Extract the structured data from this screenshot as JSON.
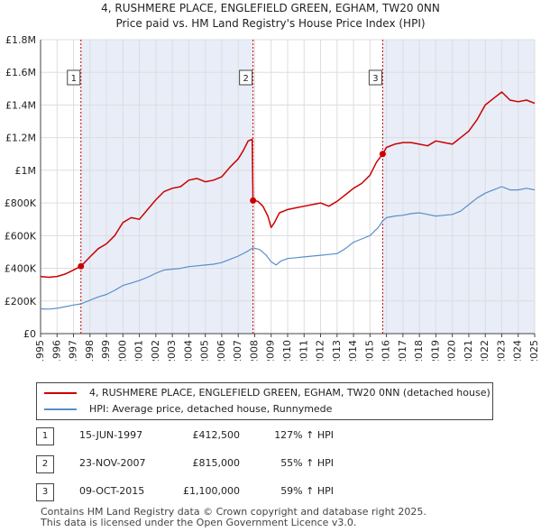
{
  "title_line1": "4, RUSHMERE PLACE, ENGLEFIELD GREEN, EGHAM, TW20 0NN",
  "title_line2": "Price paid vs. HM Land Registry's House Price Index (HPI)",
  "legend": [
    {
      "label": "4, RUSHMERE PLACE, ENGLEFIELD GREEN, EGHAM, TW20 0NN (detached house)",
      "color": "#cc0000"
    },
    {
      "label": "HPI: Average price, detached house, Runnymede",
      "color": "#5b8ec9"
    }
  ],
  "transactions": [
    {
      "num": "1",
      "date": "15-JUN-1997",
      "price": "£412,500",
      "hpi": "127% ↑ HPI"
    },
    {
      "num": "2",
      "date": "23-NOV-2007",
      "price": "£815,000",
      "hpi": "55% ↑ HPI"
    },
    {
      "num": "3",
      "date": "09-OCT-2015",
      "price": "£1,100,000",
      "hpi": "59% ↑ HPI"
    }
  ],
  "footer_line1": "Contains HM Land Registry data © Crown copyright and database right 2025.",
  "footer_line2": "This data is licensed under the Open Government Licence v3.0.",
  "chart_data": {
    "type": "line",
    "title": "4, RUSHMERE PLACE, ENGLEFIELD GREEN, EGHAM, TW20 0NN",
    "subtitle": "Price paid vs. HM Land Registry's House Price Index (HPI)",
    "xlabel": "",
    "ylabel": "",
    "xlim": [
      1995,
      2025
    ],
    "ylim": [
      0,
      1800000
    ],
    "x_ticks": [
      1995,
      1996,
      1997,
      1998,
      1999,
      2000,
      2001,
      2002,
      2003,
      2004,
      2005,
      2006,
      2007,
      2008,
      2009,
      2010,
      2011,
      2012,
      2013,
      2014,
      2015,
      2016,
      2017,
      2018,
      2019,
      2020,
      2021,
      2022,
      2023,
      2024,
      2025
    ],
    "y_ticks": [
      0,
      200000,
      400000,
      600000,
      800000,
      1000000,
      1200000,
      1400000,
      1600000,
      1800000
    ],
    "y_tick_labels": [
      "£0",
      "£200K",
      "£400K",
      "£600K",
      "£800K",
      "£1M",
      "£1.2M",
      "£1.4M",
      "£1.6M",
      "£1.8M"
    ],
    "grid": true,
    "shade_regions": [
      [
        1997.45,
        2007.9
      ],
      [
        2015.77,
        2025.0
      ]
    ],
    "series": [
      {
        "name": "4, RUSHMERE PLACE, ENGLEFIELD GREEN, EGHAM, TW20 0NN (detached house)",
        "color": "#cc0000",
        "x": [
          1995.0,
          1995.5,
          1996.0,
          1996.5,
          1997.0,
          1997.45,
          1998.0,
          1998.5,
          1999.0,
          1999.5,
          2000.0,
          2000.5,
          2001.0,
          2001.5,
          2002.0,
          2002.5,
          2003.0,
          2003.5,
          2004.0,
          2004.5,
          2005.0,
          2005.5,
          2006.0,
          2006.5,
          2007.0,
          2007.3,
          2007.6,
          2007.85,
          2007.9,
          2008.2,
          2008.5,
          2008.8,
          2009.0,
          2009.2,
          2009.5,
          2010.0,
          2010.5,
          2011.0,
          2011.5,
          2012.0,
          2012.5,
          2013.0,
          2013.5,
          2014.0,
          2014.5,
          2015.0,
          2015.4,
          2015.77,
          2016.0,
          2016.5,
          2017.0,
          2017.5,
          2018.0,
          2018.5,
          2019.0,
          2019.5,
          2020.0,
          2020.5,
          2021.0,
          2021.5,
          2022.0,
          2022.5,
          2023.0,
          2023.5,
          2024.0,
          2024.5,
          2025.0
        ],
        "y": [
          350000,
          345000,
          350000,
          365000,
          390000,
          412500,
          470000,
          520000,
          550000,
          600000,
          680000,
          710000,
          700000,
          760000,
          820000,
          870000,
          890000,
          900000,
          940000,
          950000,
          930000,
          940000,
          960000,
          1020000,
          1070000,
          1120000,
          1180000,
          1190000,
          815000,
          810000,
          780000,
          720000,
          650000,
          680000,
          740000,
          760000,
          770000,
          780000,
          790000,
          800000,
          780000,
          810000,
          850000,
          890000,
          920000,
          970000,
          1050000,
          1100000,
          1140000,
          1160000,
          1170000,
          1170000,
          1160000,
          1150000,
          1180000,
          1170000,
          1160000,
          1200000,
          1240000,
          1310000,
          1400000,
          1440000,
          1480000,
          1430000,
          1420000,
          1430000,
          1410000
        ]
      },
      {
        "name": "HPI: Average price, detached house, Runnymede",
        "color": "#5b8ec9",
        "x": [
          1995.0,
          1995.5,
          1996.0,
          1996.5,
          1997.0,
          1997.45,
          1998.0,
          1998.5,
          1999.0,
          1999.5,
          2000.0,
          2000.5,
          2001.0,
          2001.5,
          2002.0,
          2002.5,
          2003.0,
          2003.5,
          2004.0,
          2004.5,
          2005.0,
          2005.5,
          2006.0,
          2006.5,
          2007.0,
          2007.5,
          2007.9,
          2008.3,
          2008.7,
          2009.0,
          2009.3,
          2009.6,
          2010.0,
          2010.5,
          2011.0,
          2011.5,
          2012.0,
          2012.5,
          2013.0,
          2013.5,
          2014.0,
          2014.5,
          2015.0,
          2015.5,
          2015.77,
          2016.0,
          2016.5,
          2017.0,
          2017.5,
          2018.0,
          2018.5,
          2019.0,
          2019.5,
          2020.0,
          2020.5,
          2021.0,
          2021.5,
          2022.0,
          2022.5,
          2023.0,
          2023.5,
          2024.0,
          2024.5,
          2025.0
        ],
        "y": [
          152000,
          150000,
          155000,
          165000,
          175000,
          182000,
          205000,
          225000,
          240000,
          265000,
          295000,
          310000,
          325000,
          345000,
          370000,
          390000,
          395000,
          400000,
          410000,
          415000,
          420000,
          425000,
          435000,
          455000,
          475000,
          500000,
          525000,
          515000,
          480000,
          440000,
          420000,
          445000,
          460000,
          465000,
          470000,
          475000,
          480000,
          485000,
          490000,
          520000,
          560000,
          580000,
          600000,
          650000,
          690000,
          710000,
          720000,
          725000,
          735000,
          740000,
          730000,
          720000,
          725000,
          730000,
          750000,
          790000,
          830000,
          860000,
          880000,
          900000,
          880000,
          880000,
          890000,
          880000
        ]
      }
    ],
    "markers": [
      {
        "label": "1",
        "x": 1997.45,
        "y": 412500
      },
      {
        "label": "2",
        "x": 2007.9,
        "y": 815000
      },
      {
        "label": "3",
        "x": 2015.77,
        "y": 1100000
      }
    ]
  }
}
